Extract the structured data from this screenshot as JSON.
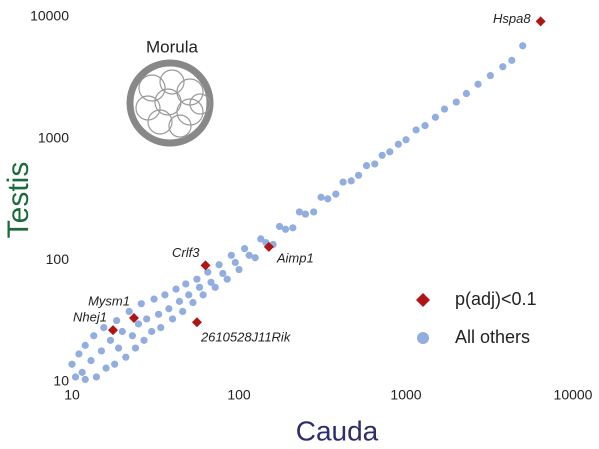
{
  "chart_data": {
    "type": "scatter",
    "xlabel": "Cauda",
    "ylabel": "Testis",
    "annotation": "Morula",
    "log_x": true,
    "log_y": true,
    "xlim": [
      10,
      10000
    ],
    "ylim": [
      10,
      10000
    ],
    "xticks": [
      10,
      100,
      1000,
      10000
    ],
    "yticks": [
      10,
      100,
      1000,
      10000
    ],
    "grid": false,
    "legend": "lower right",
    "series": [
      {
        "name": "All others",
        "color": "#92aee0",
        "marker": "circle",
        "x": [
          10,
          10.5,
          11,
          11.5,
          12,
          12,
          13,
          13.5,
          14,
          15,
          15.5,
          16,
          17,
          18,
          18.5,
          19,
          20,
          21,
          22,
          23,
          24,
          25,
          26,
          27,
          28,
          30,
          31,
          33,
          34,
          36,
          38,
          40,
          42,
          44,
          46,
          48,
          50,
          53,
          56,
          58,
          61,
          65,
          68,
          72,
          76,
          80,
          85,
          90,
          95,
          100,
          108,
          115,
          125,
          135,
          145,
          160,
          175,
          190,
          210,
          230,
          250,
          280,
          310,
          340,
          380,
          420,
          470,
          520,
          580,
          650,
          720,
          800,
          900,
          1000,
          1150,
          1300,
          1500,
          1700,
          2000,
          2300,
          2700,
          3200,
          3800,
          4300,
          5000
        ],
        "values": [
          14,
          11,
          17,
          12,
          20,
          10.5,
          15,
          24,
          11,
          18,
          28,
          13,
          22,
          14,
          32,
          19,
          26,
          16,
          38,
          24,
          19,
          30,
          44,
          22,
          33,
          26,
          48,
          36,
          28,
          52,
          40,
          33,
          58,
          46,
          38,
          64,
          52,
          45,
          70,
          60,
          52,
          80,
          66,
          60,
          92,
          78,
          70,
          110,
          96,
          84,
          125,
          110,
          105,
          150,
          140,
          135,
          190,
          180,
          185,
          250,
          240,
          250,
          330,
          320,
          350,
          440,
          450,
          500,
          600,
          620,
          730,
          780,
          900,
          980,
          1180,
          1280,
          1500,
          1750,
          2000,
          2350,
          2800,
          3300,
          3900,
          4400,
          5800
        ]
      },
      {
        "name": "p(adj)<0.1",
        "color": "#b01515",
        "marker": "diamond",
        "labels": [
          "Hspa8",
          "Crlf3",
          "Aimp1",
          "Mysm1",
          "Nhej1",
          "2610528J11Rik"
        ],
        "x": [
          6400,
          63,
          151,
          23.5,
          17.6,
          56
        ],
        "values": [
          9200,
          91,
          129,
          33.6,
          26.7,
          31
        ]
      }
    ]
  }
}
